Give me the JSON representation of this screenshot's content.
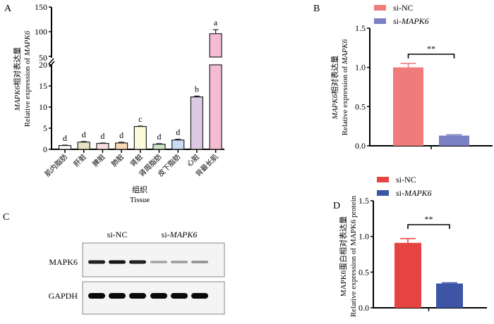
{
  "figure": {
    "panels": [
      "A",
      "B",
      "C",
      "D"
    ]
  },
  "chart_data": [
    {
      "id": "A",
      "type": "bar",
      "panel_label": "A",
      "ylabel_cn": "相对表达量",
      "ylabel_gene": "MAPK6",
      "ylabel_en_prefix": "Relative expression of ",
      "ylabel_en_gene": "MAPK6",
      "xlabel_cn": "组织",
      "xlabel_en": "Tissue",
      "axis_break": [
        20,
        50
      ],
      "lower_ylim": [
        0,
        20
      ],
      "upper_ylim": [
        50,
        150
      ],
      "lower_ticks": [
        0,
        5,
        10,
        15,
        20
      ],
      "upper_ticks": [
        50,
        100,
        150
      ],
      "categories": [
        "肌内脂肪",
        "肝脏",
        "脾脏",
        "肺脏",
        "肾脏",
        "肾周脂肪",
        "皮下脂肪",
        "心脏",
        "背最长肌"
      ],
      "values": [
        0.9,
        1.7,
        1.4,
        1.5,
        5.4,
        1.2,
        2.2,
        12.4,
        96
      ],
      "errors": [
        0.1,
        0.15,
        0.1,
        0.2,
        0.1,
        0.15,
        0.2,
        0.2,
        8
      ],
      "significance": [
        "d",
        "d",
        "d",
        "d",
        "c",
        "d",
        "d",
        "b",
        "a"
      ],
      "colors": [
        "#ffffff",
        "#e9e3c2",
        "#fbdde2",
        "#fbd9b4",
        "#fbfbd9",
        "#cfe6c4",
        "#c9dcf3",
        "#dcc9e3",
        "#f4bcd3"
      ]
    },
    {
      "id": "B",
      "type": "bar",
      "panel_label": "B",
      "ylabel_cn": "相对表达量",
      "ylabel_gene": "MAPK6",
      "ylabel_en_prefix": "Relative expression of ",
      "ylabel_en_gene": "MAPK6",
      "ylim": [
        0,
        1.5
      ],
      "ticks": [
        "0.0",
        "0.5",
        "1.0",
        "1.5"
      ],
      "tick_values": [
        0,
        0.5,
        1.0,
        1.5
      ],
      "series": [
        {
          "name": "si-NC",
          "name_prefix": "si-",
          "name_gene": "NC",
          "gene_italic": false,
          "value": 1.0,
          "error": 0.05,
          "color": "#ef7b7b"
        },
        {
          "name": "si-MAPK6",
          "name_prefix": "si-",
          "name_gene": "MAPK6",
          "gene_italic": true,
          "value": 0.13,
          "error": 0.01,
          "color": "#7b7fc4"
        }
      ],
      "significance": "**",
      "legend_position": "top"
    },
    {
      "id": "D",
      "type": "bar",
      "panel_label": "D",
      "ylabel_line1": "MAPK6蛋白相对表达量",
      "ylabel_line2": "Relative expression of MAPK6 protein",
      "ylim": [
        0,
        1.5
      ],
      "ticks": [
        "0.0",
        "0.5",
        "1.0",
        "1.5"
      ],
      "tick_values": [
        0,
        0.5,
        1.0,
        1.5
      ],
      "series": [
        {
          "name": "si-NC",
          "name_prefix": "si-",
          "name_gene": "NC",
          "gene_italic": false,
          "value": 0.91,
          "error": 0.06,
          "color": "#e84343"
        },
        {
          "name": "si-MAPK6",
          "name_prefix": "si-",
          "name_gene": "MAPK6",
          "gene_italic": true,
          "value": 0.34,
          "error": 0.01,
          "color": "#3e55a6"
        }
      ],
      "significance": "**",
      "legend_position": "top"
    }
  ],
  "western_blot": {
    "panel_label": "C",
    "groups": [
      {
        "label_prefix": "si-",
        "label_gene": "NC",
        "italic": false
      },
      {
        "label_prefix": "si-",
        "label_gene": "MAPK6",
        "italic": true
      }
    ],
    "rows": [
      {
        "label": "MAPK6",
        "intensities": [
          0.9,
          0.95,
          0.9,
          0.3,
          0.35,
          0.4
        ]
      },
      {
        "label": "GAPDH",
        "intensities": [
          1,
          1,
          1,
          1,
          1,
          1
        ]
      }
    ]
  }
}
